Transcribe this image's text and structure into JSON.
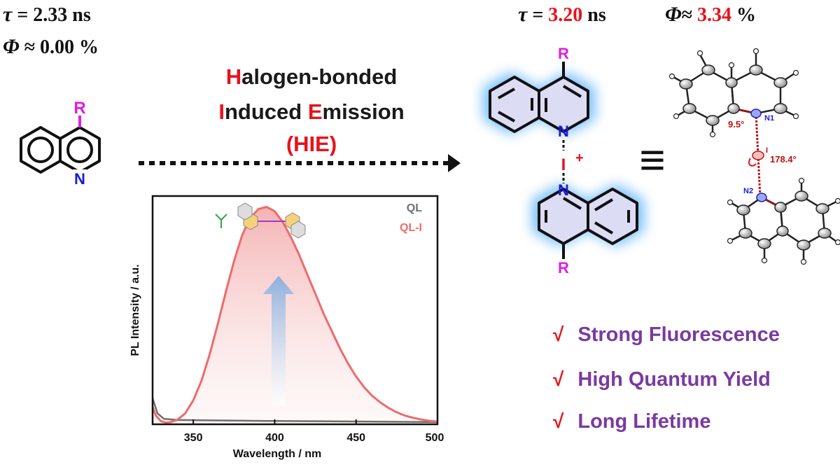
{
  "left_stats": {
    "tau_symbol": "τ",
    "tau_eq": "= 2.33 ns",
    "phi_symbol": "Φ",
    "phi_eq": "≈ 0.00 %"
  },
  "right_stats": {
    "tau_symbol": "τ",
    "tau_eq": " = ",
    "tau_value": "3.20",
    "tau_unit": " ns",
    "phi_symbol": "Φ",
    "phi_eq": "≈ ",
    "phi_value": "3.34",
    "phi_unit": " %"
  },
  "title": {
    "line1_initial": "H",
    "line1_rest": "alogen-bonded",
    "line2_initial": "I",
    "line2_mid": "nduced ",
    "line2_initial2": "E",
    "line2_rest": "mission",
    "line3": "(HIE)"
  },
  "monomer": {
    "substituent": "R",
    "nitrogen": "N"
  },
  "dimer": {
    "substituent_top": "R",
    "substituent_bottom": "R",
    "nitrogen_top": "N",
    "nitrogen_bottom": "N",
    "iodine": "I",
    "charge": "+"
  },
  "crystal": {
    "atom_n1": "N1",
    "atom_n2": "N2",
    "atom_i": "I",
    "angle_1": "9.5°",
    "angle_2": "178.4°"
  },
  "equivalence_symbol": "≡",
  "features": [
    {
      "check": "√",
      "label": "Strong Fluorescence"
    },
    {
      "check": "√",
      "label": "High Quantum Yield"
    },
    {
      "check": "√",
      "label": "Long Lifetime"
    }
  ],
  "colors": {
    "accent_red": "#e8121b",
    "feature_purple": "#7a3aa0",
    "substituent_magenta": "#e01ee0",
    "nitrogen_blue": "#1a1ad8",
    "ql_line": "#6e6e6e",
    "qli_line": "#ee6b6b",
    "glow_blue": "#5fb4ff",
    "arrow_blue": "#8fb0dc"
  },
  "chart_data": {
    "type": "line",
    "xlabel": "Wavelength / nm",
    "ylabel": "PL Intensity / a.u.",
    "xlim": [
      325,
      500
    ],
    "ylim": [
      0,
      1.05
    ],
    "x_ticks": [
      "350",
      "400",
      "450",
      "500"
    ],
    "series": [
      {
        "name": "QL",
        "x": [
          325,
          328,
          332,
          340,
          360,
          400,
          450,
          500
        ],
        "y": [
          0.12,
          0.05,
          0.025,
          0.02,
          0.018,
          0.015,
          0.013,
          0.01
        ]
      },
      {
        "name": "QL-I",
        "x": [
          325,
          327,
          330,
          333,
          336,
          340,
          345,
          350,
          355,
          360,
          365,
          370,
          375,
          380,
          385,
          390,
          395,
          400,
          405,
          410,
          415,
          420,
          425,
          430,
          435,
          440,
          445,
          450,
          455,
          460,
          465,
          470,
          475,
          480,
          485,
          490,
          495,
          500
        ],
        "y": [
          0.08,
          0.04,
          0.015,
          0.008,
          0.01,
          0.02,
          0.05,
          0.11,
          0.2,
          0.32,
          0.46,
          0.61,
          0.75,
          0.87,
          0.95,
          0.99,
          1.0,
          0.98,
          0.93,
          0.86,
          0.78,
          0.69,
          0.6,
          0.51,
          0.43,
          0.35,
          0.28,
          0.22,
          0.17,
          0.13,
          0.1,
          0.075,
          0.055,
          0.04,
          0.03,
          0.022,
          0.016,
          0.012
        ]
      }
    ]
  }
}
